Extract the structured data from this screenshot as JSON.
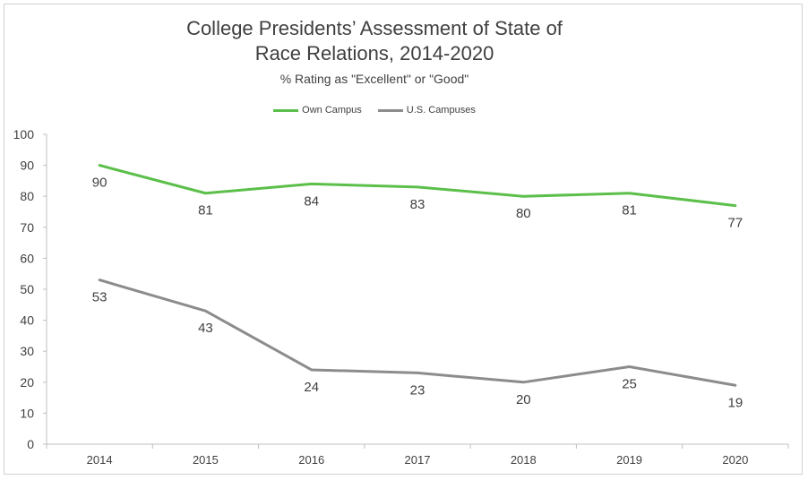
{
  "chart_data": {
    "type": "line",
    "title_line1": "College Presidents’ Assessment of State of",
    "title_line2": "Race Relations, 2014-2020",
    "subtitle": "% Rating as \"Excellent\" or \"Good\"",
    "x": [
      "2014",
      "2015",
      "2016",
      "2017",
      "2018",
      "2019",
      "2020"
    ],
    "series": [
      {
        "name": "Own Campus",
        "color": "#5cbf4a",
        "values": [
          90,
          81,
          84,
          83,
          80,
          81,
          77
        ]
      },
      {
        "name": "U.S. Campuses",
        "color": "#8c8c8c",
        "values": [
          53,
          43,
          24,
          23,
          20,
          25,
          19
        ]
      }
    ],
    "ylim": [
      0,
      100
    ],
    "yticks": [
      "0",
      "10",
      "20",
      "30",
      "40",
      "50",
      "60",
      "70",
      "80",
      "90",
      "100"
    ],
    "grid": false,
    "legend": "top"
  }
}
